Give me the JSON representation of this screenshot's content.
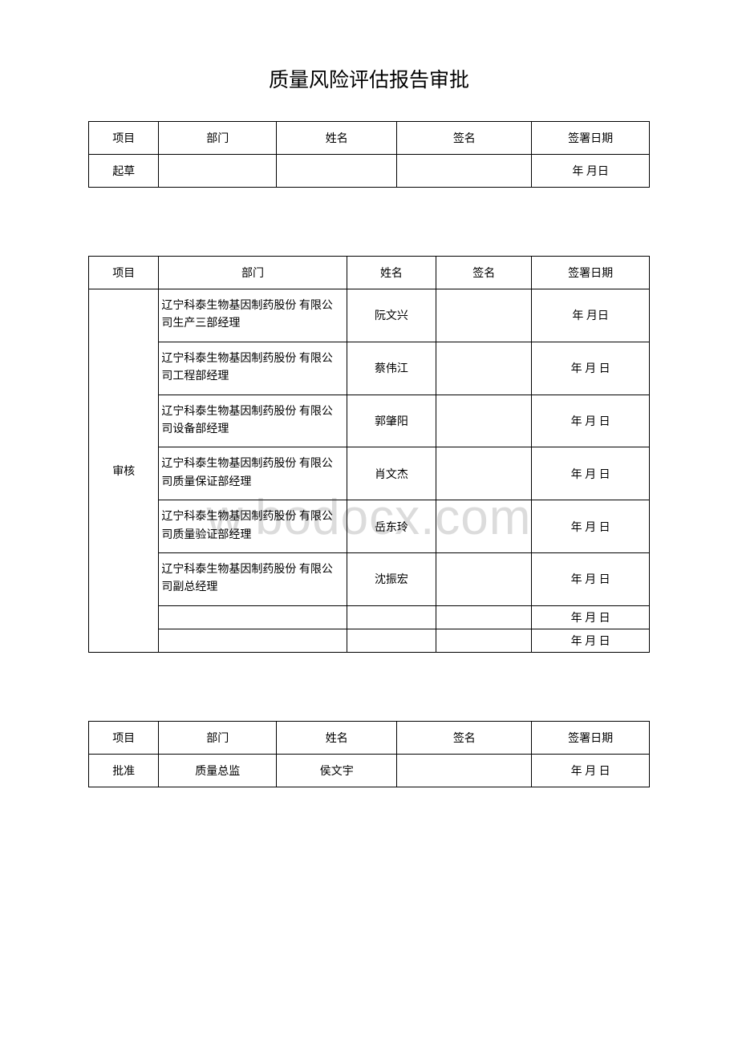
{
  "title": "质量风险评估报告审批",
  "headers": {
    "project": "项目",
    "department": "部门",
    "name": "姓名",
    "signature": "签名",
    "sign_date": "签署日期"
  },
  "table1": {
    "row_label": "起草",
    "date_text": "年 月日"
  },
  "table2": {
    "row_label": "审核",
    "rows": [
      {
        "dept": "辽宁科泰生物基因制药股份 有限公司生产三部经理",
        "name": "阮文兴",
        "date": "年 月日"
      },
      {
        "dept": "辽宁科泰生物基因制药股份 有限公司工程部经理",
        "name": "蔡伟江",
        "date": "年 月 日"
      },
      {
        "dept": "辽宁科泰生物基因制药股份 有限公司设备部经理",
        "name": "郭肇阳",
        "date": "年 月 日"
      },
      {
        "dept": "辽宁科泰生物基因制药股份 有限公司质量保证部经理",
        "name": "肖文杰",
        "date": "年 月 日"
      },
      {
        "dept": "辽宁科泰生物基因制药股份 有限公司质量验证部经理",
        "name": "岳东玲",
        "date": "年 月 日"
      },
      {
        "dept": "辽宁科泰生物基因制药股份 有限公司副总经理",
        "name": "沈振宏",
        "date": "年 月 日"
      }
    ],
    "empty1_date": "年 月 日",
    "empty2_date": "年 月 日"
  },
  "table3": {
    "row_label": "批准",
    "dept": "质量总监",
    "name": "侯文宇",
    "date": "年 月 日"
  },
  "watermark": "w.bodocx.com"
}
